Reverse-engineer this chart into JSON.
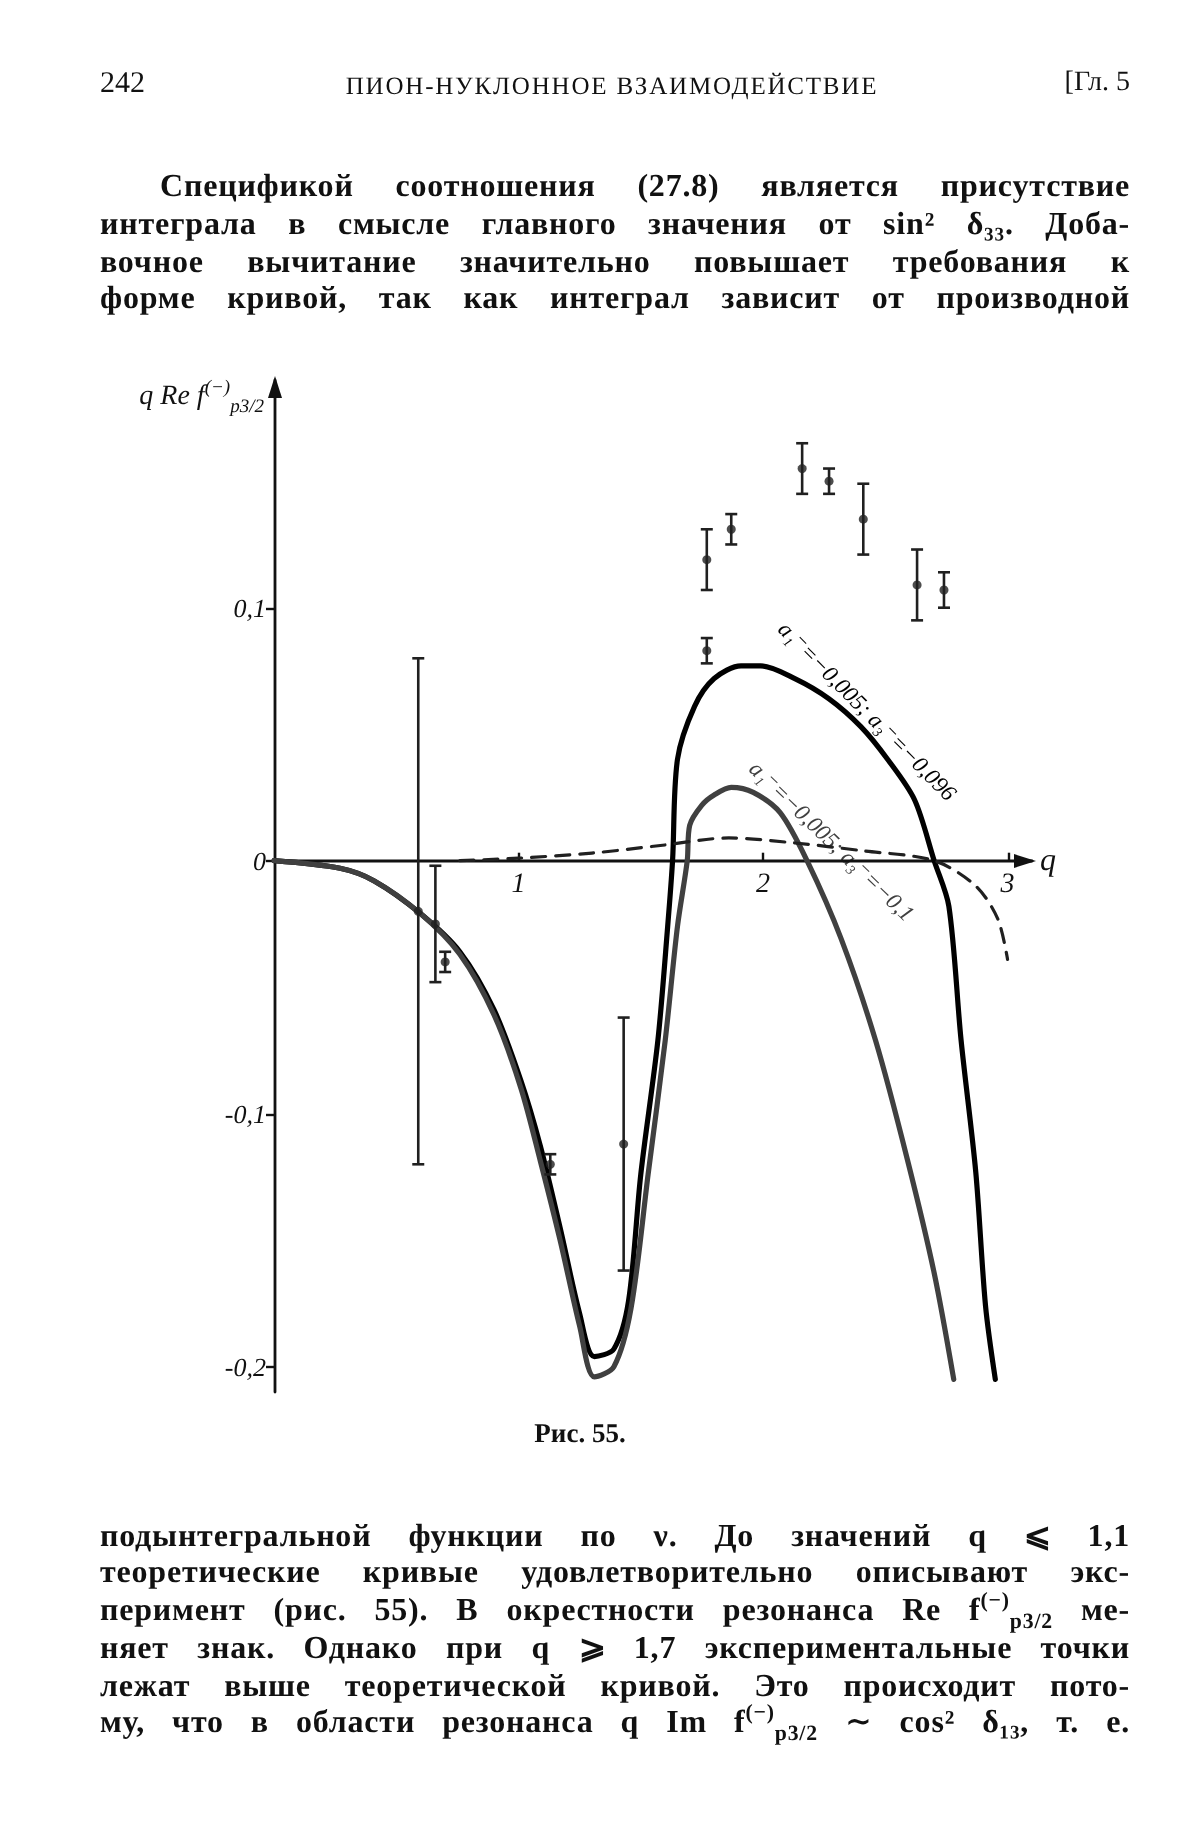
{
  "chart_data": {
    "type": "line",
    "title": "Рис. 55.",
    "xlabel": "q",
    "ylabel": "q Re f$^{(−)}$$_{p3/2}$",
    "annotations": [
      "242",
      "ПИОН-НУКЛОННОЕ ВЗАИМОДЕЙСТВИЕ",
      "[Гл. 5",
      "Спецификой соотношения (27.8) является присутствие\nинтеграла в смысле главного значения от sin² δ₃₃. Доба-\nвочное вычитание значительно повышает требования к\nформе кривой, так как интеграл зависит от производной",
      "подынтегральной функции по ν. До значений q ⩽ 1,1\nтеоретические кривые удовлетворительно описывают экс-\nперимент (рис. 55). В окрестности резонанса Re f$^{(−)}$$_{p3/2}$ ме-\nняет знак. Однако при q ⩾ 1,7 экспериментальные точки\nлежат выше теоретической кривой. Это происходит пото-\nму, что в области резонанса q Im f$^{(−)}$$_{p3/2}$ ∼ cos² δ₁₃, т. е."
    ],
    "xlim": [
      0,
      3.1
    ],
    "xticks": [
      1,
      2,
      3
    ],
    "ylim": [
      -0.21,
      0.19
    ],
    "yticks": [
      {
        "value": -0.2,
        "label": "-0,2"
      },
      {
        "value": -0.1,
        "label": "-0,1"
      },
      0,
      {
        "value": 0.1,
        "label": "0,1"
      }
    ],
    "series": [
      {
        "name": "a₁⁻=−0,005; a₃⁻=−0,096",
        "color": "#000000",
        "x": [
          0,
          0.27,
          0.41,
          0.6,
          0.76,
          0.9,
          1.01,
          1.09,
          1.17,
          1.25,
          1.31,
          1.39,
          1.45,
          1.5,
          1.57,
          1.61,
          1.63,
          1.65,
          1.72,
          1.8,
          1.91,
          1.99,
          2.13,
          2.27,
          2.4,
          2.51,
          2.62,
          2.7,
          2.76,
          2.81,
          2.87,
          2.91,
          2.95
        ],
        "values": [
          0,
          -0.003,
          -0.008,
          -0.021,
          -0.036,
          -0.059,
          -0.087,
          -0.113,
          -0.145,
          -0.179,
          -0.196,
          -0.193,
          -0.174,
          -0.124,
          -0.071,
          -0.026,
          0,
          0.04,
          0.061,
          0.072,
          0.077,
          0.077,
          0.072,
          0.064,
          0.053,
          0.04,
          0.024,
          0,
          -0.018,
          -0.071,
          -0.123,
          -0.176,
          -0.205
        ]
      },
      {
        "name": "a₁⁻=−0,005; a₃⁻=−0,1",
        "color": "#404040",
        "x": [
          0,
          0.27,
          0.41,
          0.6,
          0.76,
          0.9,
          1.01,
          1.09,
          1.17,
          1.25,
          1.31,
          1.39,
          1.46,
          1.53,
          1.6,
          1.65,
          1.69,
          1.7,
          1.75,
          1.8,
          1.87,
          1.96,
          2.07,
          2.18,
          2.32,
          2.46,
          2.59,
          2.7,
          2.78
        ],
        "values": [
          0,
          -0.003,
          -0.008,
          -0.021,
          -0.037,
          -0.061,
          -0.09,
          -0.119,
          -0.15,
          -0.184,
          -0.204,
          -0.2,
          -0.177,
          -0.124,
          -0.071,
          -0.026,
          0,
          0.014,
          0.022,
          0.026,
          0.029,
          0.027,
          0.019,
          0,
          -0.031,
          -0.071,
          -0.118,
          -0.163,
          -0.205
        ]
      },
      {
        "color": "#202020",
        "line_style": "dashed",
        "x": [
          0.76,
          1.0,
          1.3,
          1.58,
          1.86,
          2.13,
          2.4,
          2.7,
          2.87,
          2.96,
          3.0
        ],
        "values": [
          0,
          0.001,
          0.003,
          0.006,
          0.009,
          0.007,
          0.004,
          0,
          -0.01,
          -0.023,
          -0.039
        ]
      },
      {
        "type": "scatter",
        "color": "#202020",
        "marker": "circle",
        "x": [
          0.59,
          0.66,
          0.7,
          1.13,
          1.43,
          1.77,
          1.77,
          1.87,
          2.16,
          2.27,
          2.41,
          2.63,
          2.74
        ],
        "values": [
          -0.02,
          -0.025,
          -0.04,
          -0.12,
          -0.112,
          0.083,
          0.119,
          0.131,
          0.155,
          0.15,
          0.135,
          0.109,
          0.107
        ],
        "errors": [
          0.1,
          0.023,
          0.004,
          0.004,
          0.05,
          0.005,
          0.012,
          0.006,
          0.01,
          0.005,
          0.014,
          0.014,
          0.007
        ]
      }
    ]
  }
}
